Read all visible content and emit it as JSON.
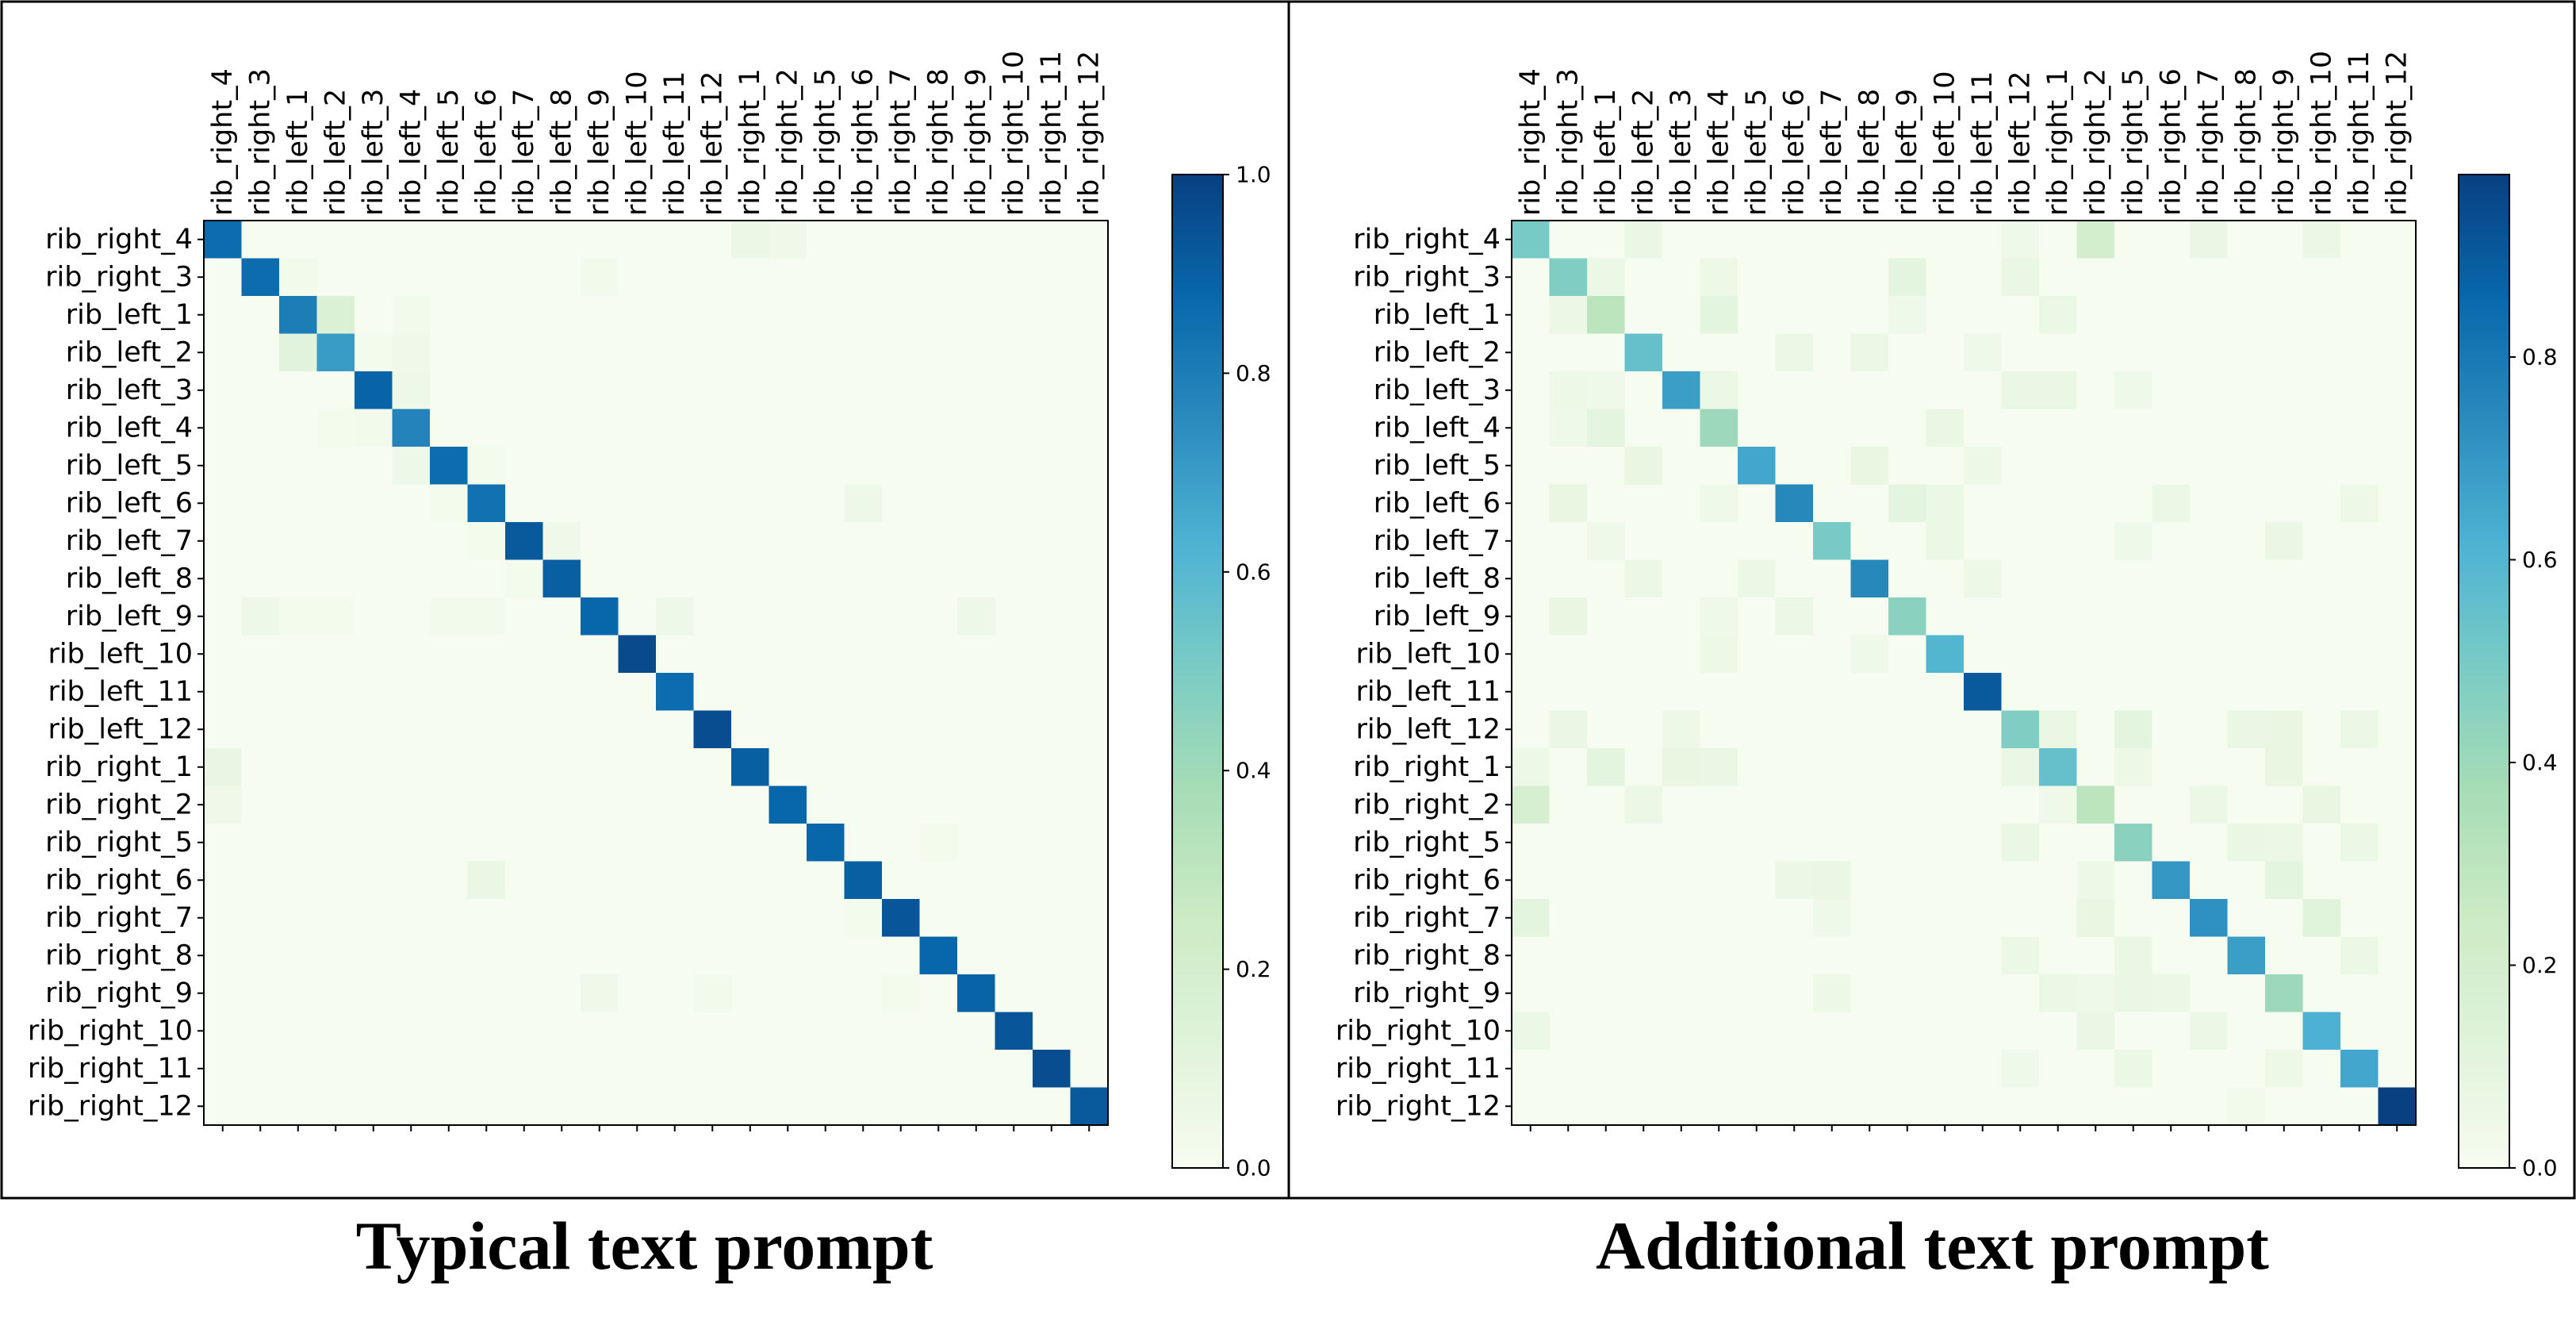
{
  "panels": [
    {
      "title": "Typical text prompt"
    },
    {
      "title": "Additional text prompt"
    }
  ],
  "colorbar": {
    "left_ticks": [
      "0.0",
      "0.2",
      "0.4",
      "0.6",
      "0.8",
      "1.0"
    ],
    "right_ticks": [
      "0.0",
      "0.2",
      "0.4",
      "0.6",
      "0.8"
    ]
  },
  "colors": {
    "colormap": [
      "#f7fcf0",
      "#e0f3db",
      "#ccebc5",
      "#a8ddb5",
      "#7bccc4",
      "#4eb3d3",
      "#2b8cbe",
      "#0868ac",
      "#084081"
    ],
    "border": "#000000"
  },
  "chart_data": [
    {
      "type": "heatmap",
      "title": "Typical text prompt",
      "colormap": "GnBu",
      "vmin": 0,
      "vmax": 1.0,
      "rows": [
        "rib_right_4",
        "rib_right_3",
        "rib_left_1",
        "rib_left_2",
        "rib_left_3",
        "rib_left_4",
        "rib_left_5",
        "rib_left_6",
        "rib_left_7",
        "rib_left_8",
        "rib_left_9",
        "rib_left_10",
        "rib_left_11",
        "rib_left_12",
        "rib_right_1",
        "rib_right_2",
        "rib_right_5",
        "rib_right_6",
        "rib_right_7",
        "rib_right_8",
        "rib_right_9",
        "rib_right_10",
        "rib_right_11",
        "rib_right_12"
      ],
      "columns": [
        "rib_right_4",
        "rib_right_3",
        "rib_left_1",
        "rib_left_2",
        "rib_left_3",
        "rib_left_4",
        "rib_left_5",
        "rib_left_6",
        "rib_left_7",
        "rib_left_8",
        "rib_left_9",
        "rib_left_10",
        "rib_left_11",
        "rib_left_12",
        "rib_right_1",
        "rib_right_2",
        "rib_right_5",
        "rib_right_6",
        "rib_right_7",
        "rib_right_8",
        "rib_right_9",
        "rib_right_10",
        "rib_right_11",
        "rib_right_12"
      ],
      "diagonal": [
        0.86,
        0.86,
        0.8,
        0.7,
        0.89,
        0.78,
        0.86,
        0.84,
        0.92,
        0.9,
        0.88,
        0.97,
        0.86,
        0.96,
        0.9,
        0.88,
        0.88,
        0.9,
        0.93,
        0.88,
        0.89,
        0.93,
        0.96,
        0.92
      ],
      "off_diagonal": [
        [
          0,
          14,
          0.06
        ],
        [
          0,
          15,
          0.04
        ],
        [
          1,
          2,
          0.03
        ],
        [
          1,
          10,
          0.03
        ],
        [
          2,
          3,
          0.16
        ],
        [
          2,
          5,
          0.03
        ],
        [
          3,
          2,
          0.12
        ],
        [
          3,
          5,
          0.04
        ],
        [
          3,
          4,
          0.02
        ],
        [
          4,
          5,
          0.05
        ],
        [
          5,
          3,
          0.02
        ],
        [
          5,
          4,
          0.03
        ],
        [
          6,
          5,
          0.05
        ],
        [
          6,
          7,
          0.02
        ],
        [
          7,
          6,
          0.02
        ],
        [
          7,
          17,
          0.05
        ],
        [
          8,
          9,
          0.04
        ],
        [
          8,
          7,
          0.02
        ],
        [
          9,
          8,
          0.02
        ],
        [
          10,
          1,
          0.05
        ],
        [
          10,
          2,
          0.02
        ],
        [
          10,
          3,
          0.02
        ],
        [
          10,
          6,
          0.03
        ],
        [
          10,
          7,
          0.03
        ],
        [
          10,
          12,
          0.05
        ],
        [
          10,
          20,
          0.05
        ],
        [
          14,
          0,
          0.08
        ],
        [
          15,
          0,
          0.04
        ],
        [
          16,
          19,
          0.02
        ],
        [
          17,
          7,
          0.07
        ],
        [
          18,
          17,
          0.02
        ],
        [
          20,
          10,
          0.04
        ],
        [
          20,
          13,
          0.03
        ],
        [
          20,
          18,
          0.02
        ]
      ]
    },
    {
      "type": "heatmap",
      "title": "Additional text prompt",
      "colormap": "GnBu",
      "vmin": 0,
      "vmax": 0.98,
      "rows": [
        "rib_right_4",
        "rib_right_3",
        "rib_left_1",
        "rib_left_2",
        "rib_left_3",
        "rib_left_4",
        "rib_left_5",
        "rib_left_6",
        "rib_left_7",
        "rib_left_8",
        "rib_left_9",
        "rib_left_10",
        "rib_left_11",
        "rib_left_12",
        "rib_right_1",
        "rib_right_2",
        "rib_right_5",
        "rib_right_6",
        "rib_right_7",
        "rib_right_8",
        "rib_right_9",
        "rib_right_10",
        "rib_right_11",
        "rib_right_12"
      ],
      "columns": [
        "rib_right_4",
        "rib_right_3",
        "rib_left_1",
        "rib_left_2",
        "rib_left_3",
        "rib_left_4",
        "rib_left_5",
        "rib_left_6",
        "rib_left_7",
        "rib_left_8",
        "rib_left_9",
        "rib_left_10",
        "rib_left_11",
        "rib_left_12",
        "rib_right_1",
        "rib_right_2",
        "rib_right_5",
        "rib_right_6",
        "rib_right_7",
        "rib_right_8",
        "rib_right_9",
        "rib_right_10",
        "rib_right_11",
        "rib_right_12"
      ],
      "diagonal": [
        0.5,
        0.48,
        0.3,
        0.55,
        0.68,
        0.4,
        0.65,
        0.75,
        0.5,
        0.75,
        0.45,
        0.6,
        0.9,
        0.48,
        0.55,
        0.3,
        0.45,
        0.7,
        0.72,
        0.68,
        0.4,
        0.62,
        0.65,
        0.98
      ],
      "off_diagonal": [
        [
          0,
          3,
          0.07
        ],
        [
          0,
          15,
          0.2
        ],
        [
          0,
          18,
          0.07
        ],
        [
          0,
          21,
          0.06
        ],
        [
          0,
          13,
          0.04
        ],
        [
          1,
          2,
          0.06
        ],
        [
          1,
          5,
          0.05
        ],
        [
          1,
          10,
          0.1
        ],
        [
          1,
          13,
          0.07
        ],
        [
          2,
          1,
          0.06
        ],
        [
          2,
          5,
          0.1
        ],
        [
          2,
          14,
          0.06
        ],
        [
          2,
          10,
          0.04
        ],
        [
          3,
          7,
          0.06
        ],
        [
          3,
          9,
          0.06
        ],
        [
          3,
          12,
          0.04
        ],
        [
          4,
          1,
          0.05
        ],
        [
          4,
          5,
          0.06
        ],
        [
          4,
          13,
          0.07
        ],
        [
          4,
          14,
          0.07
        ],
        [
          4,
          2,
          0.04
        ],
        [
          4,
          16,
          0.04
        ],
        [
          5,
          2,
          0.1
        ],
        [
          5,
          11,
          0.07
        ],
        [
          5,
          1,
          0.04
        ],
        [
          6,
          3,
          0.08
        ],
        [
          6,
          9,
          0.08
        ],
        [
          6,
          12,
          0.05
        ],
        [
          7,
          1,
          0.08
        ],
        [
          7,
          10,
          0.1
        ],
        [
          7,
          11,
          0.06
        ],
        [
          7,
          17,
          0.06
        ],
        [
          7,
          22,
          0.05
        ],
        [
          7,
          5,
          0.04
        ],
        [
          8,
          2,
          0.04
        ],
        [
          8,
          11,
          0.06
        ],
        [
          8,
          20,
          0.07
        ],
        [
          8,
          16,
          0.04
        ],
        [
          9,
          3,
          0.06
        ],
        [
          9,
          6,
          0.06
        ],
        [
          9,
          12,
          0.05
        ],
        [
          10,
          1,
          0.08
        ],
        [
          10,
          7,
          0.06
        ],
        [
          10,
          5,
          0.04
        ],
        [
          11,
          5,
          0.05
        ],
        [
          11,
          9,
          0.04
        ],
        [
          13,
          1,
          0.07
        ],
        [
          13,
          16,
          0.1
        ],
        [
          13,
          19,
          0.07
        ],
        [
          13,
          20,
          0.08
        ],
        [
          13,
          22,
          0.06
        ],
        [
          13,
          4,
          0.05
        ],
        [
          13,
          14,
          0.07
        ],
        [
          14,
          2,
          0.1
        ],
        [
          14,
          4,
          0.08
        ],
        [
          14,
          5,
          0.07
        ],
        [
          14,
          13,
          0.07
        ],
        [
          14,
          20,
          0.08
        ],
        [
          14,
          0,
          0.05
        ],
        [
          14,
          16,
          0.05
        ],
        [
          15,
          0,
          0.18
        ],
        [
          15,
          3,
          0.06
        ],
        [
          15,
          18,
          0.06
        ],
        [
          15,
          21,
          0.08
        ],
        [
          15,
          14,
          0.04
        ],
        [
          16,
          13,
          0.07
        ],
        [
          16,
          19,
          0.07
        ],
        [
          16,
          20,
          0.06
        ],
        [
          16,
          22,
          0.06
        ],
        [
          17,
          7,
          0.06
        ],
        [
          17,
          8,
          0.07
        ],
        [
          17,
          15,
          0.05
        ],
        [
          17,
          20,
          0.1
        ],
        [
          18,
          0,
          0.1
        ],
        [
          18,
          15,
          0.08
        ],
        [
          18,
          21,
          0.12
        ],
        [
          18,
          8,
          0.04
        ],
        [
          19,
          13,
          0.06
        ],
        [
          19,
          16,
          0.07
        ],
        [
          19,
          22,
          0.06
        ],
        [
          20,
          8,
          0.05
        ],
        [
          20,
          14,
          0.06
        ],
        [
          20,
          16,
          0.07
        ],
        [
          20,
          17,
          0.06
        ],
        [
          20,
          15,
          0.04
        ],
        [
          21,
          0,
          0.06
        ],
        [
          21,
          15,
          0.07
        ],
        [
          21,
          18,
          0.06
        ],
        [
          22,
          16,
          0.06
        ],
        [
          22,
          20,
          0.05
        ],
        [
          22,
          13,
          0.04
        ],
        [
          23,
          19,
          0.03
        ]
      ]
    }
  ]
}
